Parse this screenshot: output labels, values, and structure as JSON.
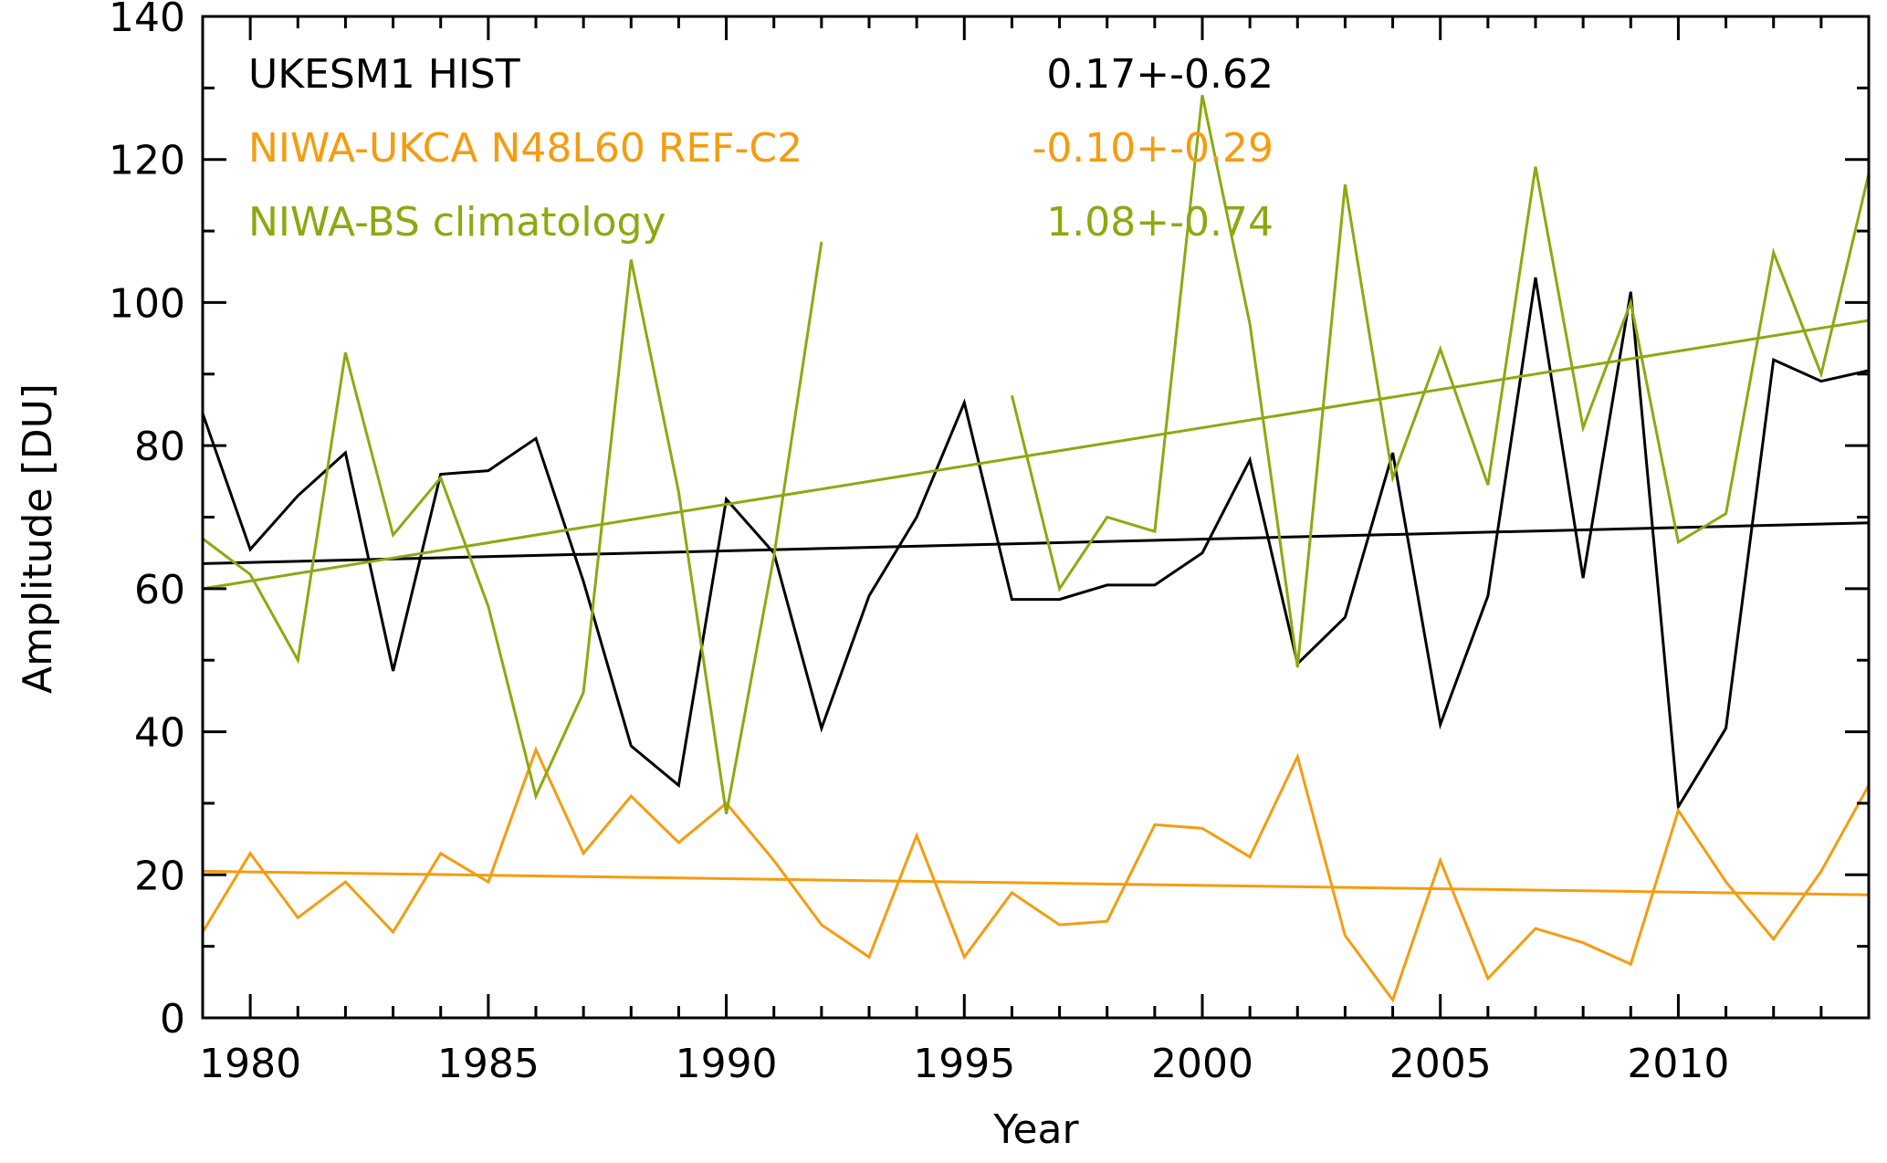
{
  "colors": {
    "UKESM1": "#000000",
    "NIWA_UKCA": "#f59c10",
    "NIWA_BS": "#8aaa10",
    "axis": "#000000",
    "background": "#ffffff"
  },
  "chart_data": {
    "type": "line",
    "title": "",
    "xlabel": "Year",
    "ylabel": "Amplitude [DU]",
    "xlim": [
      1979,
      2014
    ],
    "ylim": [
      0,
      140
    ],
    "xticks": [
      1980,
      1985,
      1990,
      1995,
      2000,
      2005,
      2010
    ],
    "yticks": [
      0,
      20,
      40,
      60,
      80,
      100,
      120,
      140
    ],
    "grid": false,
    "legend_position": "top-left",
    "series": [
      {
        "name": "UKESM1 HIST",
        "color_key": "UKESM1",
        "trend_label": "0.17+-0.62",
        "x": [
          1979,
          1980,
          1981,
          1982,
          1983,
          1984,
          1985,
          1986,
          1987,
          1988,
          1989,
          1990,
          1991,
          1992,
          1993,
          1994,
          1995,
          1996,
          1997,
          1998,
          1999,
          2000,
          2001,
          2002,
          2003,
          2004,
          2005,
          2006,
          2007,
          2008,
          2009,
          2010,
          2011,
          2012,
          2013,
          2014
        ],
        "values": [
          84.5,
          65.5,
          73,
          79,
          48.5,
          76,
          76.5,
          81,
          61,
          38,
          32.5,
          72.5,
          65,
          40.5,
          59,
          70,
          86,
          58.5,
          58.5,
          60.5,
          60.5,
          65,
          78,
          49.5,
          56,
          79,
          41,
          59,
          103.5,
          61.5,
          101.5,
          29.5,
          40.5,
          92,
          89,
          90.5
        ],
        "trend": [
          63.5,
          69.2
        ]
      },
      {
        "name": "NIWA-UKCA N48L60 REF-C2",
        "color_key": "NIWA_UKCA",
        "trend_label": "-0.10+-0.29",
        "x": [
          1979,
          1980,
          1981,
          1982,
          1983,
          1984,
          1985,
          1986,
          1987,
          1988,
          1989,
          1990,
          1991,
          1992,
          1993,
          1994,
          1995,
          1996,
          1997,
          1998,
          1999,
          2000,
          2001,
          2002,
          2003,
          2004,
          2005,
          2006,
          2007,
          2008,
          2009,
          2010,
          2011,
          2012,
          2013,
          2014
        ],
        "values": [
          12,
          23,
          14,
          19,
          12,
          23,
          19,
          37.5,
          23,
          31,
          24.5,
          30,
          22,
          13,
          8.5,
          25.5,
          8.5,
          17.5,
          13,
          13.5,
          27,
          26.5,
          22.5,
          36.5,
          11.5,
          2.5,
          22,
          5.5,
          12.5,
          10.5,
          7.5,
          29,
          19,
          11,
          20.5,
          32.5
        ],
        "trend": [
          20.5,
          17.2
        ]
      },
      {
        "name": "NIWA-BS climatology",
        "color_key": "NIWA_BS",
        "trend_label": "1.08+-0.74",
        "segments": [
          {
            "x": [
              1979,
              1980,
              1981,
              1982,
              1983,
              1984,
              1985,
              1986,
              1987,
              1988,
              1989,
              1990,
              1991,
              1992
            ],
            "values": [
              67,
              62,
              50,
              93,
              67.5,
              75.5,
              57.5,
              31,
              45.5,
              106,
              73.5,
              28.5,
              64.5,
              108.5
            ]
          },
          {
            "x": [
              1996,
              1997,
              1998,
              1999,
              2000,
              2001,
              2002,
              2003,
              2004,
              2005,
              2006,
              2007,
              2008,
              2009,
              2010,
              2011,
              2012,
              2013,
              2014
            ],
            "values": [
              87,
              60,
              70,
              68,
              129,
              97,
              49,
              116.5,
              75.5,
              93.5,
              74.5,
              119,
              82.5,
              100,
              66.5,
              70.5,
              107,
              90,
              118
            ]
          }
        ],
        "trend": [
          60,
          97.5
        ]
      }
    ]
  }
}
